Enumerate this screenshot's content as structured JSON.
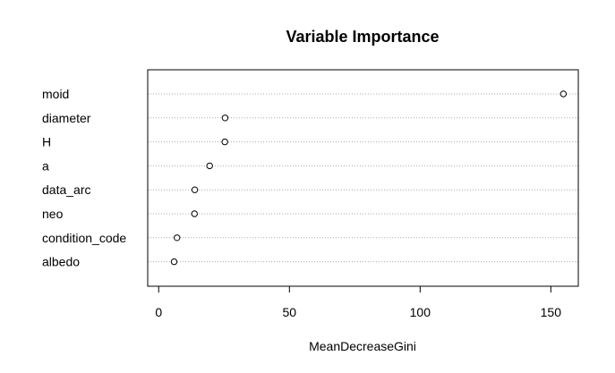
{
  "chart_data": {
    "type": "scatter",
    "title": "Variable Importance",
    "xlabel": "MeanDecreaseGini",
    "ylabel": "",
    "xlim": [
      -4.2,
      160.5
    ],
    "xticks": [
      0,
      50,
      100,
      150
    ],
    "grid": "horizontal dotted",
    "categories": [
      "moid",
      "diameter",
      "H",
      "a",
      "data_arc",
      "neo",
      "condition_code",
      "albedo"
    ],
    "values": [
      154.8,
      25.4,
      25.3,
      19.5,
      13.8,
      13.7,
      7.0,
      5.9
    ]
  }
}
